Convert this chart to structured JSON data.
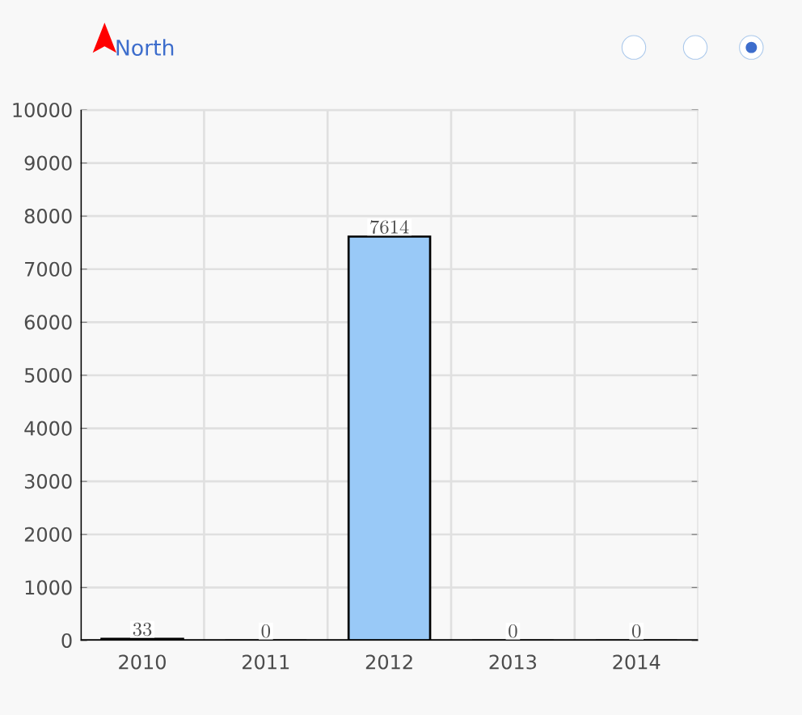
{
  "chart_data": {
    "type": "bar",
    "title": "North",
    "categories": [
      "2010",
      "2011",
      "2012",
      "2013",
      "2014"
    ],
    "values": [
      33,
      0,
      7614,
      0,
      0
    ],
    "color": "#99c9f7",
    "ylim": [
      0,
      10000
    ],
    "yticks": [
      0,
      1000,
      2000,
      3000,
      4000,
      5000,
      6000,
      7000,
      8000,
      9000,
      10000
    ],
    "grid": true,
    "data_labels": true
  }
}
